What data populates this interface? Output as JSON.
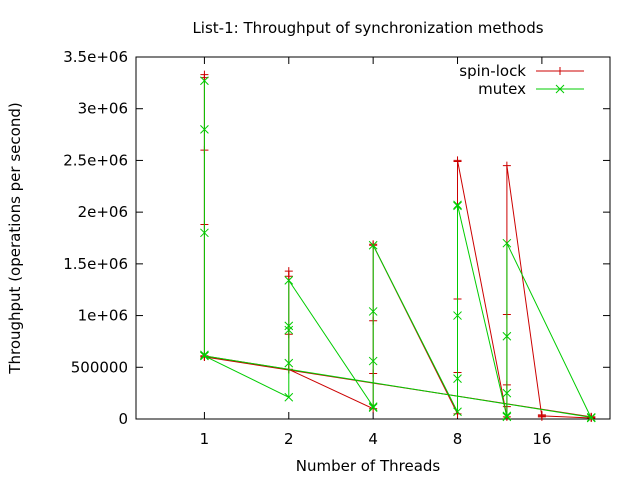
{
  "chart_data": {
    "type": "line",
    "title": "List-1: Throughput of synchronization methods",
    "xlabel": "Number of Threads",
    "ylabel": "Throughput (operations per second)",
    "x_scale": "log2",
    "x_ticks": [
      1,
      2,
      4,
      8,
      16
    ],
    "xlim": [
      0.57,
      28
    ],
    "ylim": [
      0,
      3500000
    ],
    "y_ticks": [
      {
        "value": 0,
        "label": "0"
      },
      {
        "value": 500000,
        "label": "500000"
      },
      {
        "value": 1000000,
        "label": "1e+06"
      },
      {
        "value": 1500000,
        "label": "1.5e+06"
      },
      {
        "value": 2000000,
        "label": "2e+06"
      },
      {
        "value": 2500000,
        "label": "2.5e+06"
      },
      {
        "value": 3000000,
        "label": "3e+06"
      },
      {
        "value": 3500000,
        "label": "3.5e+06"
      }
    ],
    "grid": false,
    "legend_position": "top-right",
    "series": [
      {
        "name": "spin-lock",
        "color": "#cc0000",
        "marker": "plus",
        "x": [
          1,
          1,
          1,
          1,
          1,
          1,
          1,
          2,
          2,
          2,
          2,
          2,
          4,
          4,
          4,
          4,
          4,
          8,
          8,
          8,
          8,
          8,
          12,
          12,
          12,
          12,
          12,
          16,
          16,
          16,
          24,
          24,
          24,
          1,
          24
        ],
        "y": [
          3330000,
          3300000,
          2600000,
          1880000,
          610000,
          600000,
          610000,
          480000,
          820000,
          1380000,
          1430000,
          480000,
          100000,
          440000,
          950000,
          1690000,
          1680000,
          50000,
          450000,
          1160000,
          2490000,
          2500000,
          20000,
          120000,
          330000,
          1010000,
          2450000,
          20000,
          40000,
          30000,
          10000,
          15000,
          20000,
          600000,
          20000
        ]
      },
      {
        "name": "mutex",
        "color": "#00cc00",
        "marker": "cross",
        "x": [
          1,
          1,
          1,
          1,
          1,
          2,
          2,
          2,
          2,
          2,
          4,
          4,
          4,
          4,
          4,
          8,
          8,
          8,
          8,
          8,
          12,
          12,
          12,
          12,
          12,
          24,
          24,
          1,
          24
        ],
        "y": [
          3270000,
          2800000,
          1800000,
          620000,
          610000,
          210000,
          540000,
          860000,
          900000,
          1340000,
          120000,
          110000,
          560000,
          1040000,
          1680000,
          70000,
          390000,
          1000000,
          2060000,
          2070000,
          20000,
          30000,
          250000,
          800000,
          1700000,
          10000,
          15000,
          610000,
          15000
        ]
      }
    ]
  }
}
